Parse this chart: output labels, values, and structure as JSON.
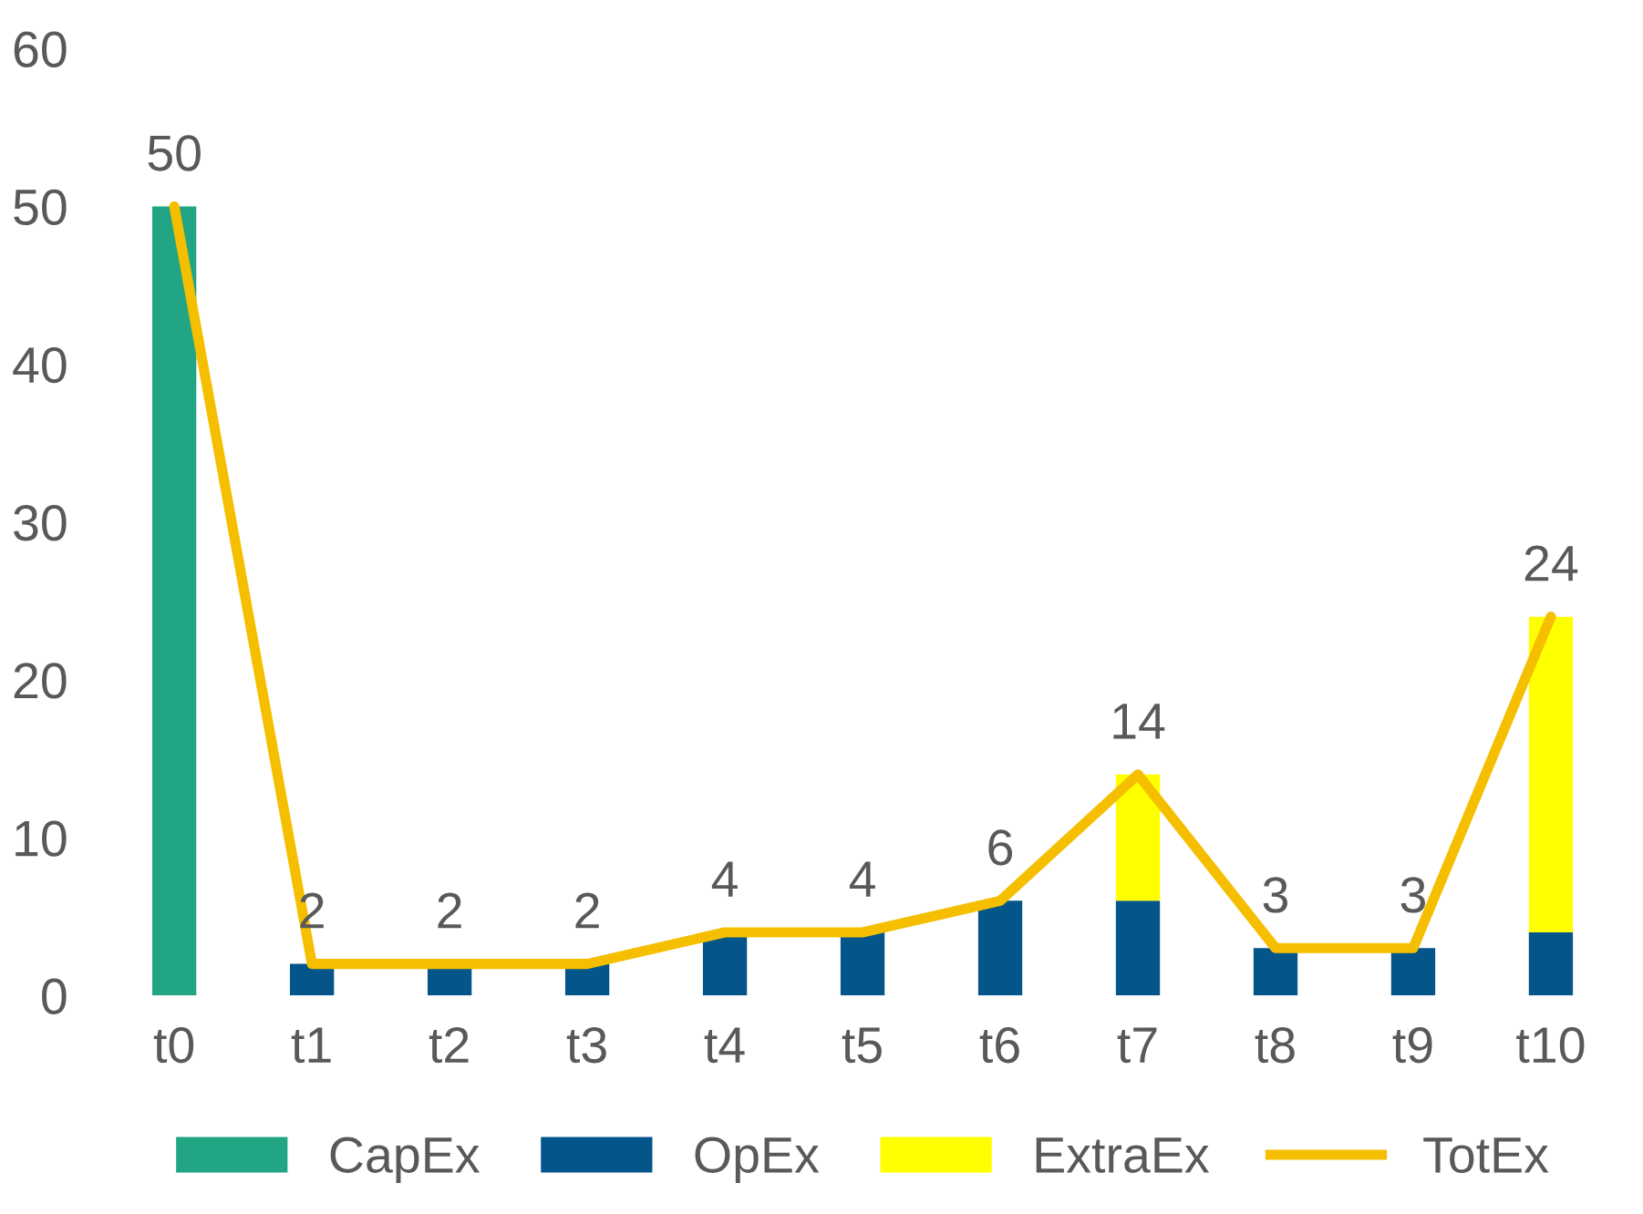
{
  "chart_data": {
    "type": "bar",
    "stacked": true,
    "categories": [
      "t0",
      "t1",
      "t2",
      "t3",
      "t4",
      "t5",
      "t6",
      "t7",
      "t8",
      "t9",
      "t10"
    ],
    "series": [
      {
        "name": "CapEx",
        "color": "#21a585",
        "values": [
          50,
          null,
          null,
          null,
          null,
          null,
          null,
          null,
          null,
          null,
          null
        ]
      },
      {
        "name": "OpEx",
        "color": "#03558a",
        "values": [
          null,
          2,
          2,
          2,
          4,
          4,
          6,
          6,
          3,
          3,
          4
        ]
      },
      {
        "name": "ExtraEx",
        "color": "#ffff00",
        "values": [
          null,
          null,
          null,
          null,
          null,
          null,
          null,
          8,
          null,
          null,
          20
        ]
      },
      {
        "name": "TotEx",
        "type": "line",
        "color": "#f5bf00",
        "values": [
          50,
          2,
          2,
          2,
          4,
          4,
          6,
          14,
          3,
          3,
          24
        ],
        "value_labels": [
          "50",
          "2",
          "2",
          "2",
          "4",
          "4",
          "6",
          "14",
          "3",
          "3",
          "24"
        ]
      }
    ],
    "ylim": [
      0,
      60
    ],
    "yticks": [
      0,
      10,
      20,
      30,
      40,
      50,
      60
    ],
    "grid": false,
    "legend": "bottom",
    "marker": "none",
    "line_style": "solid"
  }
}
